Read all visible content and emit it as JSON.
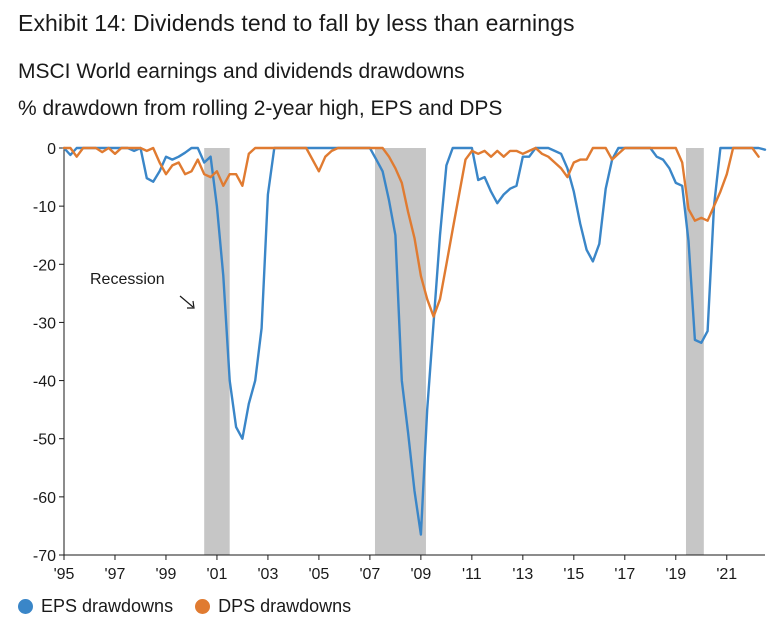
{
  "exhibit_title": "Exhibit 14: Dividends tend to fall by less than earnings",
  "chart_data": {
    "type": "line",
    "title": "MSCI World earnings and dividends drawdowns",
    "subtitle": "% drawdown from rolling 2-year high, EPS and DPS",
    "xlabel": "",
    "ylabel": "",
    "xlim": [
      1995,
      2022.5
    ],
    "ylim": [
      -70,
      0
    ],
    "y_ticks": [
      0,
      -10,
      -20,
      -30,
      -40,
      -50,
      -60,
      -70
    ],
    "x_ticks": [
      {
        "value": 1995,
        "label": "'95"
      },
      {
        "value": 1997,
        "label": "'97"
      },
      {
        "value": 1999,
        "label": "'99"
      },
      {
        "value": 2001,
        "label": "'01"
      },
      {
        "value": 2003,
        "label": "'03"
      },
      {
        "value": 2005,
        "label": "'05"
      },
      {
        "value": 2007,
        "label": "'07"
      },
      {
        "value": 2009,
        "label": "'09"
      },
      {
        "value": 2011,
        "label": "'11"
      },
      {
        "value": 2013,
        "label": "'13"
      },
      {
        "value": 2015,
        "label": "'15"
      },
      {
        "value": 2017,
        "label": "'17"
      },
      {
        "value": 2019,
        "label": "'19"
      },
      {
        "value": 2021,
        "label": "'21"
      }
    ],
    "grid": false,
    "legend_position": "bottom-left",
    "recessions": [
      {
        "start": 2000.5,
        "end": 2001.5
      },
      {
        "start": 2007.2,
        "end": 2009.2
      },
      {
        "start": 2019.4,
        "end": 2020.1
      }
    ],
    "annotation": {
      "text": "Recession"
    },
    "series": [
      {
        "name": "EPS drawdowns",
        "color": "#3a86c8",
        "points": [
          [
            1995.0,
            0
          ],
          [
            1995.25,
            -1.2
          ],
          [
            1995.5,
            0
          ],
          [
            1995.75,
            0
          ],
          [
            1996.0,
            0
          ],
          [
            1996.25,
            0
          ],
          [
            1996.5,
            0
          ],
          [
            1996.75,
            0
          ],
          [
            1997.0,
            0
          ],
          [
            1997.25,
            0
          ],
          [
            1997.5,
            0
          ],
          [
            1997.75,
            -0.5
          ],
          [
            1998.0,
            0
          ],
          [
            1998.25,
            -5.2
          ],
          [
            1998.5,
            -5.8
          ],
          [
            1998.75,
            -4.0
          ],
          [
            1999.0,
            -1.5
          ],
          [
            1999.25,
            -2.0
          ],
          [
            1999.5,
            -1.5
          ],
          [
            1999.75,
            -0.8
          ],
          [
            2000.0,
            0
          ],
          [
            2000.25,
            0
          ],
          [
            2000.5,
            -2.5
          ],
          [
            2000.75,
            -1.5
          ],
          [
            2001.0,
            -10
          ],
          [
            2001.25,
            -22
          ],
          [
            2001.5,
            -40
          ],
          [
            2001.75,
            -48
          ],
          [
            2002.0,
            -50
          ],
          [
            2002.25,
            -44
          ],
          [
            2002.5,
            -40
          ],
          [
            2002.75,
            -31
          ],
          [
            2003.0,
            -8
          ],
          [
            2003.25,
            0
          ],
          [
            2003.5,
            0
          ],
          [
            2004.0,
            0
          ],
          [
            2005.0,
            0
          ],
          [
            2006.0,
            0
          ],
          [
            2007.0,
            0
          ],
          [
            2007.25,
            -2
          ],
          [
            2007.5,
            -4
          ],
          [
            2007.75,
            -9
          ],
          [
            2008.0,
            -15
          ],
          [
            2008.25,
            -40
          ],
          [
            2008.5,
            -49
          ],
          [
            2008.75,
            -59
          ],
          [
            2009.0,
            -66.5
          ],
          [
            2009.25,
            -45
          ],
          [
            2009.5,
            -30
          ],
          [
            2009.75,
            -15
          ],
          [
            2010.0,
            -3
          ],
          [
            2010.25,
            0
          ],
          [
            2010.5,
            0
          ],
          [
            2010.75,
            0
          ],
          [
            2011.0,
            0
          ],
          [
            2011.25,
            -5.5
          ],
          [
            2011.5,
            -5.0
          ],
          [
            2011.75,
            -7.5
          ],
          [
            2012.0,
            -9.5
          ],
          [
            2012.25,
            -8.0
          ],
          [
            2012.5,
            -7.0
          ],
          [
            2012.75,
            -6.5
          ],
          [
            2013.0,
            -1.5
          ],
          [
            2013.25,
            -1.5
          ],
          [
            2013.5,
            0
          ],
          [
            2013.75,
            0
          ],
          [
            2014.0,
            0
          ],
          [
            2014.25,
            -0.5
          ],
          [
            2014.5,
            -1.0
          ],
          [
            2014.75,
            -3.5
          ],
          [
            2015.0,
            -7.5
          ],
          [
            2015.25,
            -13
          ],
          [
            2015.5,
            -17.5
          ],
          [
            2015.75,
            -19.5
          ],
          [
            2016.0,
            -16.5
          ],
          [
            2016.25,
            -7.0
          ],
          [
            2016.5,
            -2.0
          ],
          [
            2016.75,
            0
          ],
          [
            2017.0,
            0
          ],
          [
            2017.5,
            0
          ],
          [
            2018.0,
            0
          ],
          [
            2018.25,
            -1.5
          ],
          [
            2018.5,
            -2.0
          ],
          [
            2018.75,
            -3.5
          ],
          [
            2019.0,
            -6.0
          ],
          [
            2019.25,
            -6.5
          ],
          [
            2019.5,
            -16
          ],
          [
            2019.75,
            -33
          ],
          [
            2020.0,
            -33.5
          ],
          [
            2020.25,
            -31.5
          ],
          [
            2020.5,
            -10
          ],
          [
            2020.75,
            0
          ],
          [
            2021.0,
            0
          ],
          [
            2021.5,
            0
          ],
          [
            2022.0,
            0
          ],
          [
            2022.25,
            0.0
          ],
          [
            2022.5,
            -0.3
          ]
        ]
      },
      {
        "name": "DPS drawdowns",
        "color": "#e07b31",
        "points": [
          [
            1995.0,
            0
          ],
          [
            1995.25,
            0
          ],
          [
            1995.5,
            -1.5
          ],
          [
            1995.75,
            0
          ],
          [
            1996.0,
            0
          ],
          [
            1996.25,
            0
          ],
          [
            1996.5,
            -0.7
          ],
          [
            1996.75,
            0
          ],
          [
            1997.0,
            -1.0
          ],
          [
            1997.25,
            0
          ],
          [
            1997.5,
            0
          ],
          [
            1997.75,
            0
          ],
          [
            1998.0,
            0
          ],
          [
            1998.25,
            -0.5
          ],
          [
            1998.5,
            0
          ],
          [
            1998.75,
            -2.5
          ],
          [
            1999.0,
            -4.5
          ],
          [
            1999.25,
            -3.0
          ],
          [
            1999.5,
            -2.5
          ],
          [
            1999.75,
            -4.5
          ],
          [
            2000.0,
            -4.0
          ],
          [
            2000.25,
            -2.0
          ],
          [
            2000.5,
            -4.5
          ],
          [
            2000.75,
            -5.0
          ],
          [
            2001.0,
            -4.0
          ],
          [
            2001.25,
            -6.5
          ],
          [
            2001.5,
            -4.5
          ],
          [
            2001.75,
            -4.5
          ],
          [
            2002.0,
            -6.5
          ],
          [
            2002.25,
            -1.0
          ],
          [
            2002.5,
            0
          ],
          [
            2002.75,
            0
          ],
          [
            2003.0,
            0
          ],
          [
            2004.0,
            0
          ],
          [
            2004.5,
            0
          ],
          [
            2005.0,
            -4.0
          ],
          [
            2005.25,
            -1.5
          ],
          [
            2005.5,
            -0.5
          ],
          [
            2005.75,
            0
          ],
          [
            2006.0,
            0
          ],
          [
            2007.0,
            0
          ],
          [
            2007.5,
            0
          ],
          [
            2007.75,
            -1.5
          ],
          [
            2008.0,
            -3.5
          ],
          [
            2008.25,
            -6
          ],
          [
            2008.5,
            -11
          ],
          [
            2008.75,
            -15.5
          ],
          [
            2009.0,
            -22
          ],
          [
            2009.25,
            -26
          ],
          [
            2009.5,
            -29
          ],
          [
            2009.75,
            -26
          ],
          [
            2010.0,
            -20
          ],
          [
            2010.25,
            -14
          ],
          [
            2010.5,
            -8
          ],
          [
            2010.75,
            -2
          ],
          [
            2011.0,
            -0.5
          ],
          [
            2011.25,
            -1.0
          ],
          [
            2011.5,
            -0.5
          ],
          [
            2011.75,
            -1.5
          ],
          [
            2012.0,
            -0.5
          ],
          [
            2012.25,
            -1.5
          ],
          [
            2012.5,
            -0.5
          ],
          [
            2012.75,
            -0.5
          ],
          [
            2013.0,
            -1.0
          ],
          [
            2013.25,
            -0.5
          ],
          [
            2013.5,
            0
          ],
          [
            2013.75,
            -1.0
          ],
          [
            2014.0,
            -1.5
          ],
          [
            2014.25,
            -2.5
          ],
          [
            2014.5,
            -3.5
          ],
          [
            2014.75,
            -5.0
          ],
          [
            2015.0,
            -2.5
          ],
          [
            2015.25,
            -2.0
          ],
          [
            2015.5,
            -2.0
          ],
          [
            2015.75,
            0
          ],
          [
            2016.0,
            0
          ],
          [
            2016.25,
            0
          ],
          [
            2016.5,
            -2.0
          ],
          [
            2016.75,
            -1.0
          ],
          [
            2017.0,
            0
          ],
          [
            2017.5,
            0
          ],
          [
            2018.0,
            0
          ],
          [
            2018.5,
            0
          ],
          [
            2019.0,
            0
          ],
          [
            2019.25,
            -2.5
          ],
          [
            2019.5,
            -10.5
          ],
          [
            2019.75,
            -12.5
          ],
          [
            2020.0,
            -12
          ],
          [
            2020.25,
            -12.5
          ],
          [
            2020.5,
            -10
          ],
          [
            2020.75,
            -7.5
          ],
          [
            2021.0,
            -4.5
          ],
          [
            2021.25,
            0
          ],
          [
            2021.5,
            0
          ],
          [
            2022.0,
            0
          ],
          [
            2022.25,
            -1.5
          ]
        ]
      }
    ]
  }
}
